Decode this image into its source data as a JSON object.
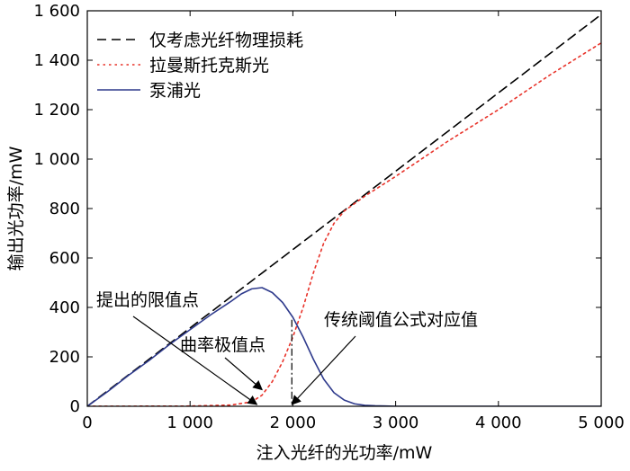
{
  "chart_data": {
    "type": "line",
    "title": "",
    "xlabel": "注入光纤的光功率/mW",
    "ylabel": "输出光功率/mW",
    "xlim": [
      0,
      5000
    ],
    "ylim": [
      0,
      1600
    ],
    "xticks": [
      0,
      1000,
      2000,
      3000,
      4000,
      5000
    ],
    "xtick_labels": [
      "0",
      "1 000",
      "2 000",
      "3 000",
      "4 000",
      "5 000"
    ],
    "yticks": [
      0,
      200,
      400,
      600,
      800,
      1000,
      1200,
      1400,
      1600
    ],
    "ytick_labels": [
      "0",
      "200",
      "400",
      "600",
      "800",
      "1 000",
      "1 200",
      "1 400",
      "1 600"
    ],
    "grid": false,
    "legend_position": "top-left",
    "series": [
      {
        "name": "仅考虑光纤物理损耗",
        "style": "dashed",
        "color": "#000000",
        "x": [
          0,
          5000
        ],
        "y": [
          0,
          1585
        ]
      },
      {
        "name": "拉曼斯托克斯光",
        "style": "dotted",
        "color": "#e8332a",
        "x": [
          0,
          1000,
          1400,
          1600,
          1700,
          1800,
          1900,
          2000,
          2100,
          2200,
          2300,
          2400,
          2500,
          2700,
          3000,
          3500,
          4000,
          4500,
          5000
        ],
        "y": [
          0,
          1,
          5,
          18,
          45,
          100,
          180,
          280,
          400,
          540,
          660,
          740,
          790,
          850,
          930,
          1070,
          1200,
          1340,
          1470
        ]
      },
      {
        "name": "泵浦光",
        "style": "solid",
        "color": "#2e3a8c",
        "x": [
          0,
          200,
          400,
          600,
          800,
          1000,
          1200,
          1400,
          1500,
          1600,
          1700,
          1800,
          1900,
          2000,
          2100,
          2200,
          2300,
          2400,
          2500,
          2600,
          2700,
          2800,
          2900,
          3000,
          5000
        ],
        "y": [
          0,
          60,
          125,
          185,
          250,
          310,
          370,
          425,
          455,
          475,
          480,
          460,
          420,
          360,
          280,
          190,
          110,
          55,
          25,
          10,
          4,
          2,
          1,
          0,
          0
        ]
      }
    ],
    "annotations": [
      {
        "text": "提出的限值点",
        "x": 1650,
        "y": 0
      },
      {
        "text": "曲率极值点",
        "x": 1700,
        "y": 60
      },
      {
        "text": "传统阈值公式对应值",
        "x": 1990,
        "y": 0
      }
    ],
    "vline": {
      "x": 1990,
      "y_top": 350,
      "style": "dashdot"
    }
  }
}
